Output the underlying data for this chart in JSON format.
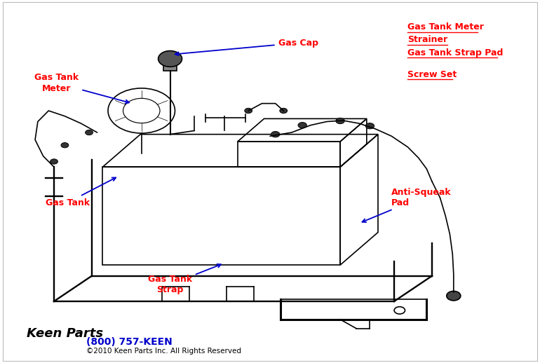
{
  "bg_color": "#ffffff",
  "tank_color": "#000000",
  "arrow_color": "#0000cc",
  "label_color": "#ff0000",
  "footer_phone": "(800) 757-KEEN",
  "footer_phone_color": "#0000cc",
  "footer_copyright": "©2010 Keen Parts Inc. All Rights Reserved",
  "footer_copyright_color": "#000000",
  "right_labels": [
    "Gas Tank Meter",
    "Strainer",
    "Gas Tank Strap Pad",
    "",
    "Screw Set"
  ]
}
